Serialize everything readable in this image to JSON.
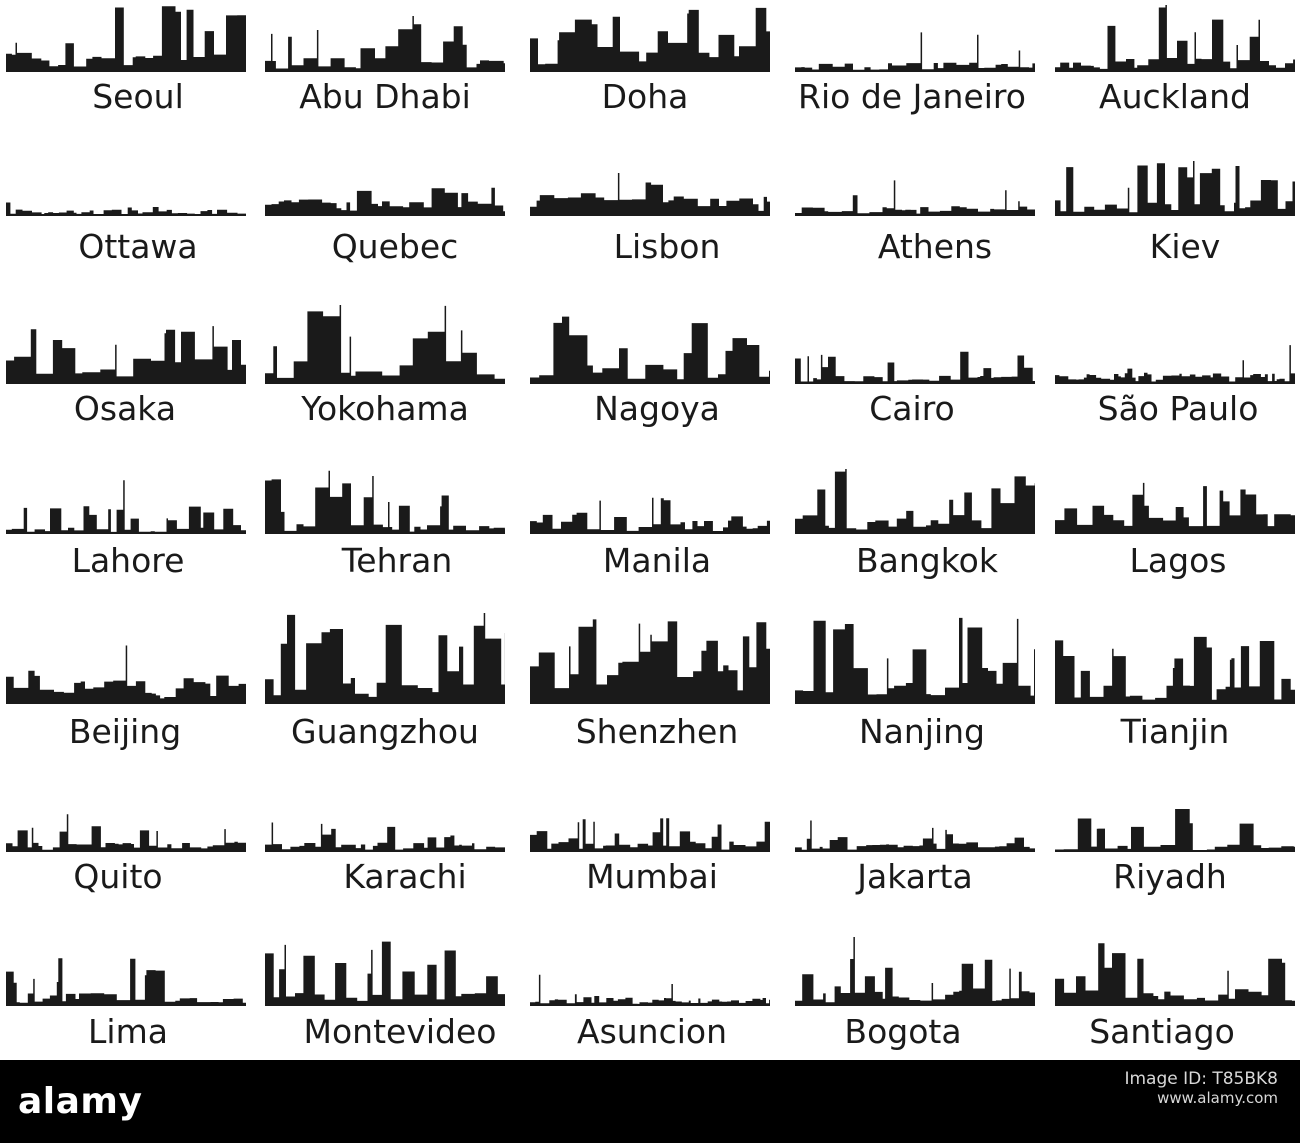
{
  "colors": {
    "silhouette": "#1a1a1a",
    "label": "#1a1a1a",
    "background": "#ffffff",
    "footer": "#000000",
    "footer_text": "#ffffff"
  },
  "rows": [
    {
      "cities": [
        "Seoul",
        "Abu Dhabi",
        "Doha",
        "Rio de Janeiro",
        "Auckland"
      ]
    },
    {
      "cities": [
        "Ottawa",
        "Quebec",
        "Lisbon",
        "Athens",
        "Kiev"
      ]
    },
    {
      "cities": [
        "Osaka",
        "Yokohama",
        "Nagoya",
        "Cairo",
        "São Paulo"
      ]
    },
    {
      "cities": [
        "Lahore",
        "Tehran",
        "Manila",
        "Bangkok",
        "Lagos"
      ]
    },
    {
      "cities": [
        "Beijing",
        "Guangzhou",
        "Shenzhen",
        "Nanjing",
        "Tianjin"
      ]
    },
    {
      "cities": [
        "Quito",
        "Karachi",
        "Mumbai",
        "Jakarta",
        "Riyadh"
      ]
    },
    {
      "cities": [
        "Lima",
        "Montevideo",
        "Asuncion",
        "Bogota",
        "Santiago"
      ]
    }
  ],
  "footer": {
    "brand": "alamy",
    "image_id_label": "Image ID: T85BK8",
    "website": "www.alamy.com"
  }
}
